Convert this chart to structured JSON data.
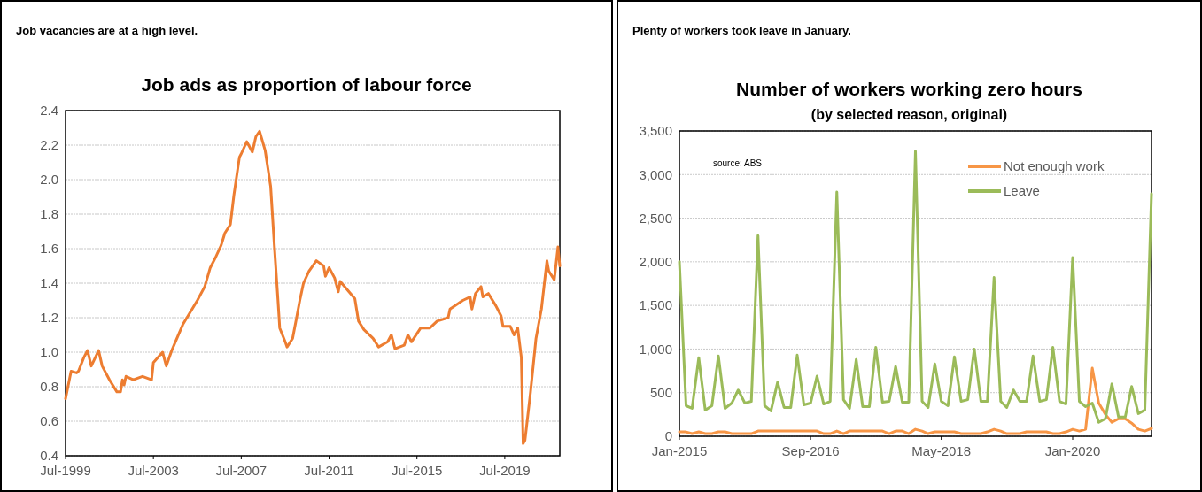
{
  "chart_data": [
    {
      "type": "line",
      "title": "Job ads as proportion of labour force",
      "annotations": [
        "Job vacancies are at a high level."
      ],
      "color": "#ed7d31",
      "grid": "y",
      "legend": false,
      "x": [
        "1999-07",
        "1999-10",
        "2000-01",
        "2000-02",
        "2000-05",
        "2000-07",
        "2000-09",
        "2001-01",
        "2001-03",
        "2001-07",
        "2001-11",
        "2002-01",
        "2002-02",
        "2002-03",
        "2002-04",
        "2002-08",
        "2003-01",
        "2003-06",
        "2003-07",
        "2003-12",
        "2004-02",
        "2004-05",
        "2004-07",
        "2004-11",
        "2005-03",
        "2005-07",
        "2005-11",
        "2006-02",
        "2006-05",
        "2006-08",
        "2006-10",
        "2007-01",
        "2007-03",
        "2007-06",
        "2007-07",
        "2007-10",
        "2008-01",
        "2008-03",
        "2008-05",
        "2008-08",
        "2008-11",
        "2009-01",
        "2009-03",
        "2009-04",
        "2009-07",
        "2009-08",
        "2009-11",
        "2010-01",
        "2010-03",
        "2010-05",
        "2010-08",
        "2010-12",
        "2011-04",
        "2011-05",
        "2011-07",
        "2011-10",
        "2011-12",
        "2012-01",
        "2012-09",
        "2012-11",
        "2013-02",
        "2013-07",
        "2013-10",
        "2014-03",
        "2014-05",
        "2014-07",
        "2014-12",
        "2015-02",
        "2015-04",
        "2015-09",
        "2016-02",
        "2016-06",
        "2016-12",
        "2017-01",
        "2017-08",
        "2017-12",
        "2018-01",
        "2018-03",
        "2018-06",
        "2018-07",
        "2018-10",
        "2019-02",
        "2019-05",
        "2019-06",
        "2019-10",
        "2019-12",
        "2020-02",
        "2020-04",
        "2020-05",
        "2020-06",
        "2020-09",
        "2020-12",
        "2021-03",
        "2021-06",
        "2021-07",
        "2021-10",
        "2021-12",
        "2022-01"
      ],
      "values": [
        0.73,
        0.89,
        0.88,
        0.89,
        0.97,
        1.01,
        0.92,
        1.01,
        0.92,
        0.84,
        0.77,
        0.77,
        0.84,
        0.81,
        0.86,
        0.84,
        0.86,
        0.84,
        0.94,
        1.0,
        0.92,
        1.01,
        1.06,
        1.16,
        1.23,
        1.3,
        1.38,
        1.49,
        1.55,
        1.62,
        1.69,
        1.74,
        1.91,
        2.13,
        2.15,
        2.22,
        2.16,
        2.25,
        2.28,
        2.17,
        1.96,
        1.62,
        1.31,
        1.14,
        1.06,
        1.03,
        1.08,
        1.19,
        1.3,
        1.4,
        1.47,
        1.53,
        1.5,
        1.44,
        1.49,
        1.43,
        1.35,
        1.41,
        1.31,
        1.18,
        1.13,
        1.08,
        1.03,
        1.06,
        1.1,
        1.02,
        1.04,
        1.1,
        1.06,
        1.14,
        1.14,
        1.18,
        1.2,
        1.25,
        1.3,
        1.32,
        1.25,
        1.34,
        1.38,
        1.32,
        1.34,
        1.27,
        1.21,
        1.15,
        1.15,
        1.1,
        1.14,
        0.97,
        0.47,
        0.49,
        0.77,
        1.08,
        1.25,
        1.53,
        1.47,
        1.42,
        1.61,
        1.5
      ],
      "xlim": [
        "1999-07",
        "2022-01"
      ],
      "xticks": [
        {
          "value": "1999-07",
          "label": "Jul-1999"
        },
        {
          "value": "2003-07",
          "label": "Jul-2003"
        },
        {
          "value": "2007-07",
          "label": "Jul-2007"
        },
        {
          "value": "2011-07",
          "label": "Jul-2011"
        },
        {
          "value": "2015-07",
          "label": "Jul-2015"
        },
        {
          "value": "2019-07",
          "label": "Jul-2019"
        }
      ],
      "ylim": [
        0.4,
        2.4
      ],
      "yticks": [
        {
          "value": 0.4,
          "label": "0.4"
        },
        {
          "value": 0.6,
          "label": "0.6"
        },
        {
          "value": 0.8,
          "label": "0.8"
        },
        {
          "value": 1,
          "label": "1.0"
        },
        {
          "value": 1.2,
          "label": "1.2"
        },
        {
          "value": 1.4,
          "label": "1.4"
        },
        {
          "value": 1.6,
          "label": "1.6"
        },
        {
          "value": 1.8,
          "label": "1.8"
        },
        {
          "value": 2,
          "label": "2.0"
        },
        {
          "value": 2.2,
          "label": "2.2"
        },
        {
          "value": 2.4,
          "label": "2.4"
        }
      ]
    },
    {
      "type": "line",
      "title": "Number of workers working zero hours",
      "subtitle": "(by selected reason, original)",
      "annotations": [
        "Plenty of workers took leave in January.",
        "source:  ABS"
      ],
      "grid": "y",
      "legend": "top right",
      "x": [
        "2015-01",
        "2015-02",
        "2015-03",
        "2015-04",
        "2015-05",
        "2015-06",
        "2015-07",
        "2015-08",
        "2015-09",
        "2015-10",
        "2015-11",
        "2015-12",
        "2016-01",
        "2016-02",
        "2016-03",
        "2016-04",
        "2016-05",
        "2016-06",
        "2016-07",
        "2016-08",
        "2016-09",
        "2016-10",
        "2016-11",
        "2016-12",
        "2017-01",
        "2017-02",
        "2017-03",
        "2017-04",
        "2017-05",
        "2017-06",
        "2017-07",
        "2017-08",
        "2017-09",
        "2017-10",
        "2017-11",
        "2017-12",
        "2018-01",
        "2018-02",
        "2018-03",
        "2018-04",
        "2018-05",
        "2018-06",
        "2018-07",
        "2018-08",
        "2018-09",
        "2018-10",
        "2018-11",
        "2018-12",
        "2019-01",
        "2019-02",
        "2019-03",
        "2019-04",
        "2019-05",
        "2019-06",
        "2019-07",
        "2019-08",
        "2019-09",
        "2019-10",
        "2019-11",
        "2019-12",
        "2020-01",
        "2020-02",
        "2020-03",
        "2020-04",
        "2020-05",
        "2020-06",
        "2020-07",
        "2020-08",
        "2020-09",
        "2020-10",
        "2020-11",
        "2020-12",
        "2021-01"
      ],
      "series": [
        {
          "name": "Not enough work",
          "color": "#f79646",
          "values": [
            50,
            50,
            30,
            50,
            30,
            30,
            50,
            50,
            30,
            30,
            30,
            30,
            60,
            60,
            60,
            60,
            60,
            60,
            60,
            60,
            60,
            60,
            30,
            30,
            60,
            30,
            60,
            60,
            60,
            60,
            60,
            60,
            30,
            60,
            60,
            30,
            80,
            60,
            30,
            50,
            50,
            50,
            50,
            30,
            30,
            30,
            30,
            50,
            80,
            60,
            30,
            30,
            30,
            50,
            50,
            50,
            50,
            30,
            30,
            50,
            80,
            60,
            80,
            780,
            380,
            250,
            160,
            200,
            200,
            150,
            80,
            60,
            90
          ]
        },
        {
          "name": "Leave",
          "color": "#9bbb59",
          "values": [
            2000,
            350,
            320,
            900,
            300,
            350,
            920,
            320,
            380,
            530,
            380,
            400,
            2300,
            350,
            290,
            620,
            330,
            330,
            930,
            360,
            380,
            690,
            370,
            400,
            2800,
            420,
            320,
            880,
            340,
            340,
            1020,
            390,
            400,
            800,
            390,
            390,
            3270,
            400,
            330,
            830,
            400,
            350,
            910,
            400,
            420,
            1000,
            400,
            400,
            1820,
            400,
            330,
            530,
            400,
            400,
            920,
            400,
            420,
            1020,
            400,
            370,
            2050,
            400,
            340,
            380,
            160,
            200,
            600,
            220,
            220,
            570,
            260,
            300,
            2780
          ]
        }
      ],
      "xlim": [
        "2015-01",
        "2021-01"
      ],
      "xticks": [
        {
          "value": "2015-01",
          "label": "Jan-2015"
        },
        {
          "value": "2016-09",
          "label": "Sep-2016"
        },
        {
          "value": "2018-05",
          "label": "May-2018"
        },
        {
          "value": "2020-01",
          "label": "Jan-2020"
        }
      ],
      "ylim": [
        0,
        3500
      ],
      "yticks": [
        0,
        500,
        {
          "value": 1000,
          "label": "1,000"
        },
        {
          "value": 1500,
          "label": "1,500"
        },
        {
          "value": 2000,
          "label": "2,000"
        },
        {
          "value": 2500,
          "label": "2,500"
        },
        {
          "value": 3000,
          "label": "3,000"
        },
        {
          "value": 3500,
          "label": "3,500"
        }
      ]
    }
  ]
}
